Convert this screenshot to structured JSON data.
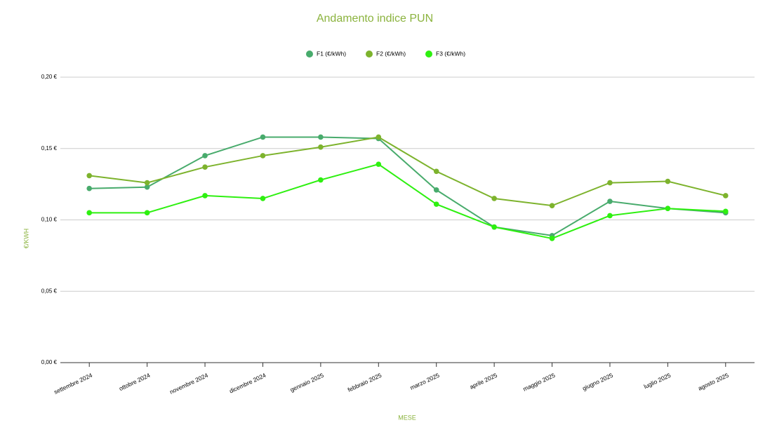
{
  "chart_data": {
    "type": "line",
    "title": "Andamento indice PUN",
    "x_label": "MESE",
    "y_label": "€/KWH",
    "categories": [
      "settembre 2024",
      "ottobre 2024",
      "novembre 2024",
      "dicembre 2024",
      "gennaio 2025",
      "febbraio 2025",
      "marzo 2025",
      "aprile 2025",
      "maggio 2025",
      "giugno 2025",
      "luglio 2025",
      "agosto 2025"
    ],
    "series": [
      {
        "name": "F1 (€/kWh)",
        "color": "#48ab6c",
        "values": [
          0.122,
          0.123,
          0.145,
          0.158,
          0.158,
          0.157,
          0.121,
          0.095,
          0.089,
          0.113,
          0.108,
          0.105
        ]
      },
      {
        "name": "F2 (€/kWh)",
        "color": "#7db32d",
        "values": [
          0.131,
          0.126,
          0.137,
          0.145,
          0.151,
          0.158,
          0.134,
          0.115,
          0.11,
          0.126,
          0.127,
          0.117
        ]
      },
      {
        "name": "F3 (€/kWh)",
        "color": "#2ef010",
        "values": [
          0.105,
          0.105,
          0.117,
          0.115,
          0.128,
          0.139,
          0.111,
          0.095,
          0.087,
          0.103,
          0.108,
          0.106
        ]
      }
    ],
    "ylim": [
      0,
      0.2
    ],
    "yticks": [
      {
        "value": 0,
        "label": "0,00 €"
      },
      {
        "value": 0.05,
        "label": "0,05 €"
      },
      {
        "value": 0.1,
        "label": "0,10 €"
      },
      {
        "value": 0.15,
        "label": "0,15 €"
      },
      {
        "value": 0.2,
        "label": "0,20 €"
      }
    ],
    "grid": true,
    "legend": "top"
  }
}
